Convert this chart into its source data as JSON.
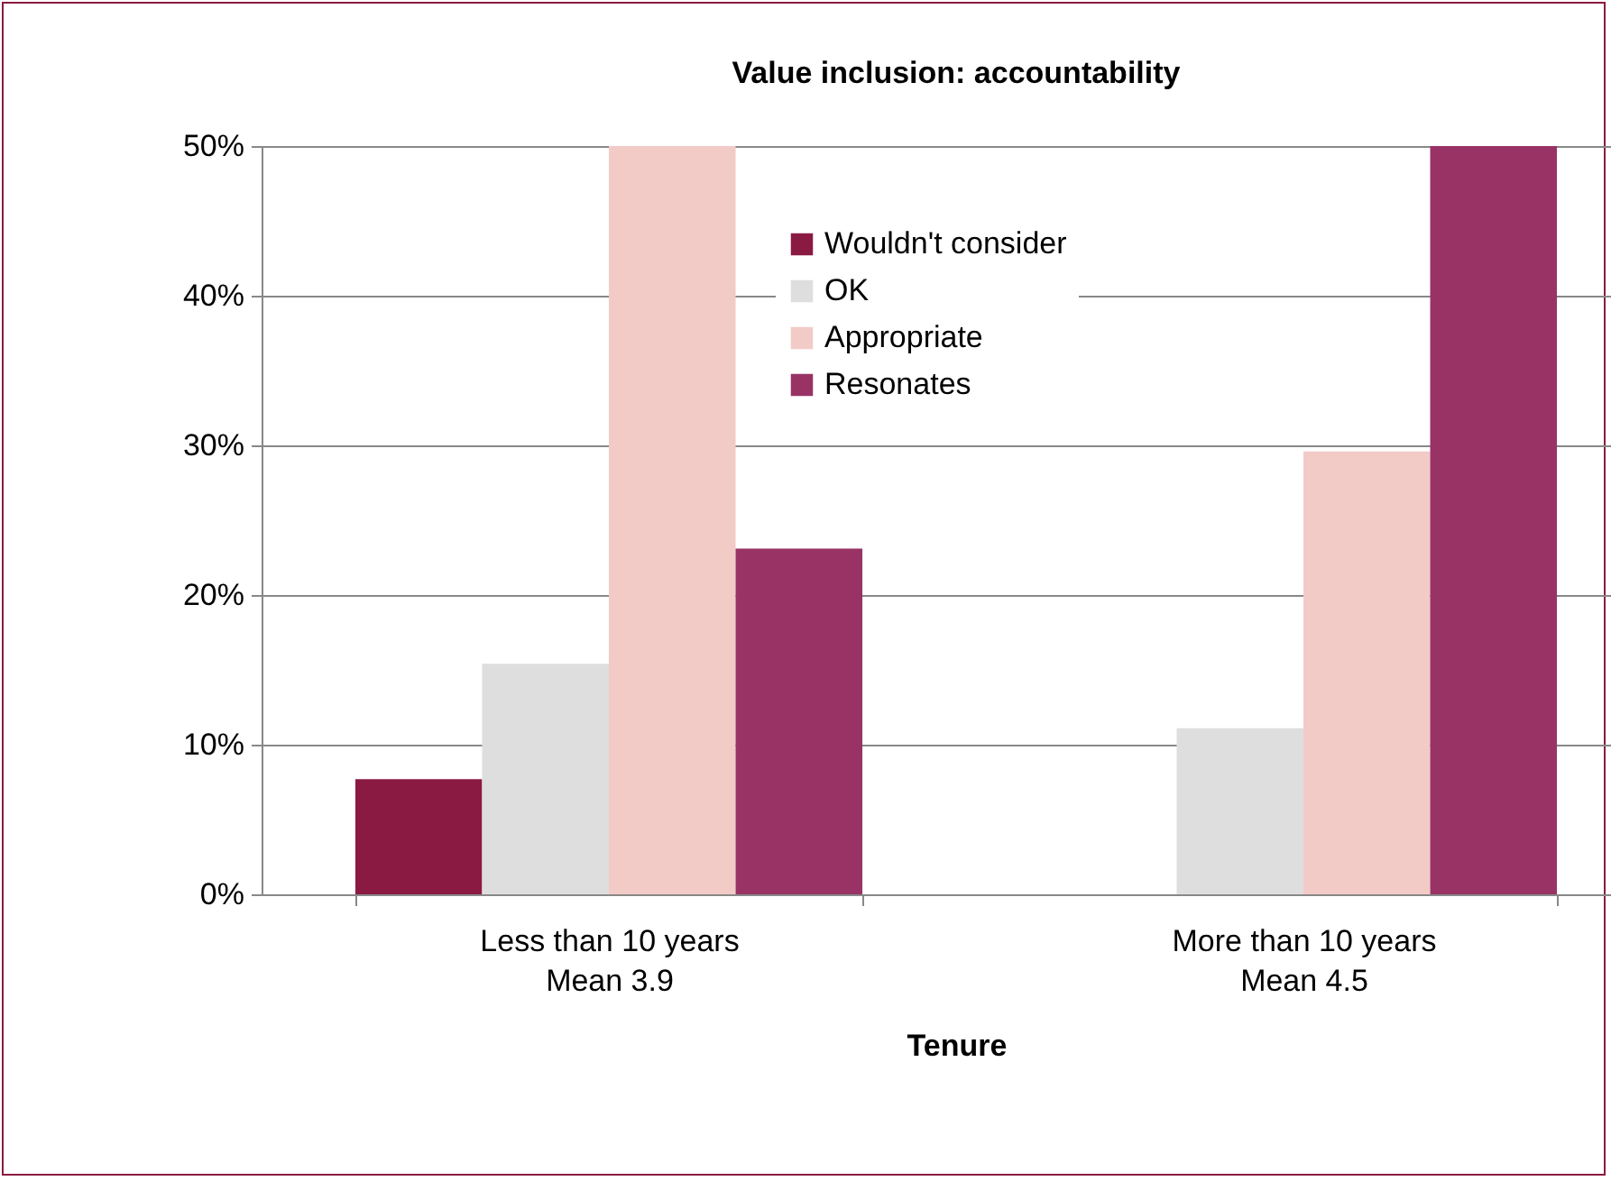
{
  "chart_data": {
    "type": "bar",
    "title": "Value inclusion: accountability",
    "xlabel": "Tenure",
    "categories": [
      "Less than 10 years\nMean 3.9",
      "More than 10 years\nMean 4.5"
    ],
    "series": [
      {
        "name": "Wouldn't consider",
        "color": "#8b1a42",
        "values": [
          7.7,
          0
        ]
      },
      {
        "name": "OK",
        "color": "#dedede",
        "values": [
          15.4,
          11.1
        ]
      },
      {
        "name": "Appropriate",
        "color": "#f2cbc6",
        "values": [
          50,
          29.6
        ]
      },
      {
        "name": "Resonates",
        "color": "#993366",
        "values": [
          23.1,
          50
        ]
      }
    ],
    "ylim": [
      0,
      50
    ],
    "yticks": [
      {
        "value": 0,
        "label": "0%"
      },
      {
        "value": 10,
        "label": "10%"
      },
      {
        "value": 20,
        "label": "20%"
      },
      {
        "value": 30,
        "label": "30%"
      },
      {
        "value": 40,
        "label": "40%"
      },
      {
        "value": 50,
        "label": "50%"
      }
    ],
    "grid": "y",
    "legend": "top"
  }
}
